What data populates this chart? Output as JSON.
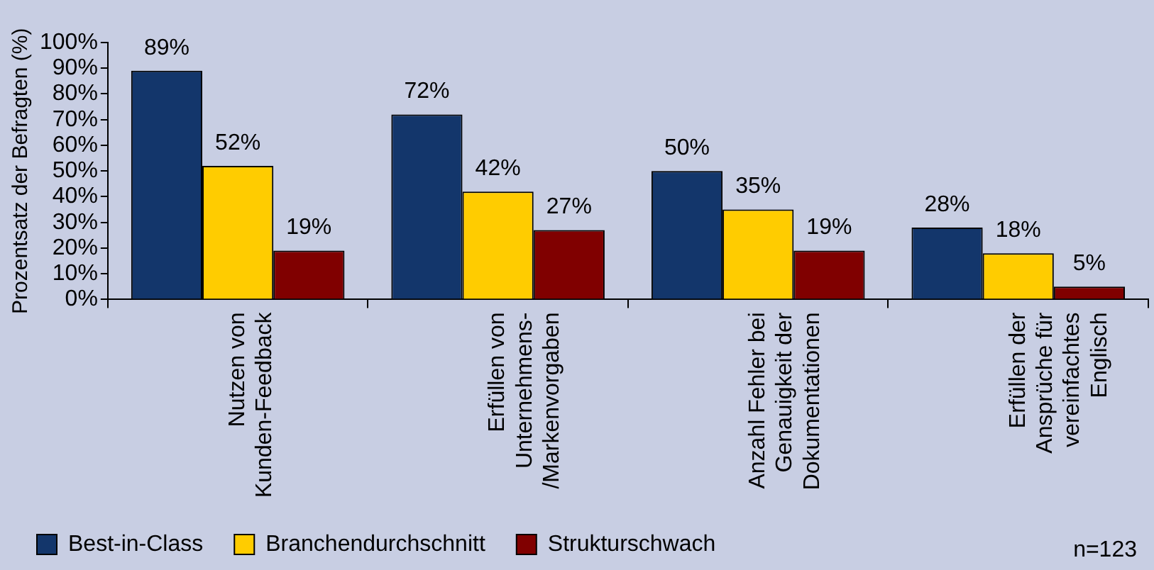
{
  "chart_data": {
    "type": "bar",
    "ylabel": "Prozentsatz der Befragten (%)",
    "categories": [
      "Nutzen von Kunden-Feedback",
      "Erfüllen von Unternehmens-/Markenvorgaben",
      "Anzahl Fehler bei Genauigkeit der Dokumentationen",
      "Erfüllen der Ansprüche für vereinfachtes Englisch"
    ],
    "series": [
      {
        "name": "Best-in-Class",
        "color": "#13366b",
        "values": [
          89,
          72,
          50,
          28
        ],
        "value_labels": [
          "89%",
          "72%",
          "50%",
          "28%"
        ]
      },
      {
        "name": "Branchendurchschnitt",
        "color": "#ffcc00",
        "values": [
          52,
          42,
          35,
          18
        ],
        "value_labels": [
          "52%",
          "42%",
          "35%",
          "18%"
        ]
      },
      {
        "name": "Strukturschwach",
        "color": "#800000",
        "values": [
          19,
          27,
          19,
          5
        ],
        "value_labels": [
          "19%",
          "27%",
          "19%",
          "5%"
        ]
      }
    ],
    "ylim": [
      0,
      100
    ],
    "yticks": [
      {
        "value": 0,
        "label": "0%"
      },
      {
        "value": 10,
        "label": "10%"
      },
      {
        "value": 20,
        "label": "20%"
      },
      {
        "value": 30,
        "label": "30%"
      },
      {
        "value": 40,
        "label": "40%"
      },
      {
        "value": 50,
        "label": "50%"
      },
      {
        "value": 60,
        "label": "60%"
      },
      {
        "value": 70,
        "label": "70%"
      },
      {
        "value": 80,
        "label": "80%"
      },
      {
        "value": 90,
        "label": "90%"
      },
      {
        "value": 100,
        "label": "100%"
      }
    ],
    "grid": false,
    "legend": "bottom",
    "annotations": [
      "n=123"
    ]
  }
}
